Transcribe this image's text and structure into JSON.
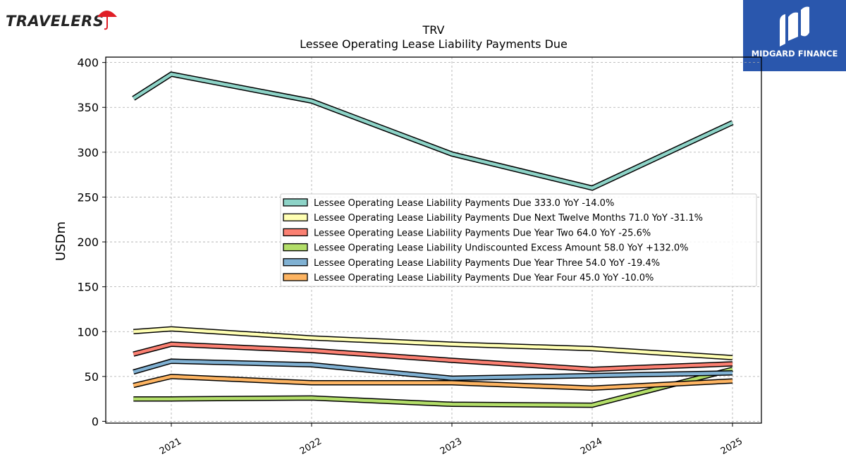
{
  "brand_left": {
    "text": "TRAVELERS",
    "umbrella_color": "#e01e26"
  },
  "brand_right": {
    "text": "MIDGARD FINANCE",
    "bg_color": "#2a57ad"
  },
  "chart_data": {
    "type": "line",
    "title": "TRV",
    "subtitle": "Lessee Operating Lease Liability Payments Due",
    "ylabel": "USDm",
    "xlabel": "",
    "ylim": [
      -2,
      406
    ],
    "yticks": [
      0,
      50,
      100,
      150,
      200,
      250,
      300,
      350,
      400
    ],
    "xticks": [
      "2021",
      "2022",
      "2023",
      "2024",
      "2025"
    ],
    "grid": true,
    "legend_position": "center-right",
    "series": [
      {
        "name": "Lessee Operating Lease Liability Payments Due  333.0 YoY -14.0%",
        "color": "#8dd3c7",
        "x": [
          2020.73,
          2021.0,
          2022.0,
          2023.0,
          2024.0,
          2025.0
        ],
        "y": [
          360,
          387,
          357,
          298,
          260,
          333
        ]
      },
      {
        "name": "Lessee Operating Lease Liability Payments Due Next Twelve Months  71.0 YoY -31.1%",
        "color": "#ffffb3",
        "x": [
          2020.73,
          2021.0,
          2022.0,
          2023.0,
          2024.0,
          2025.0
        ],
        "y": [
          100,
          103,
          93,
          86,
          81,
          71
        ]
      },
      {
        "name": "Lessee Operating Lease Liability Payments Due Year Two  64.0 YoY -25.6%",
        "color": "#fb8072",
        "x": [
          2020.73,
          2021.0,
          2022.0,
          2023.0,
          2024.0,
          2025.0
        ],
        "y": [
          75,
          86,
          79,
          68,
          58,
          64
        ]
      },
      {
        "name": "Lessee Operating Lease Liability Undiscounted Excess Amount  58.0 YoY +132.0%",
        "color": "#b3de69",
        "x": [
          2020.73,
          2021.0,
          2022.0,
          2023.0,
          2024.0,
          2025.0
        ],
        "y": [
          25,
          25,
          26,
          19,
          18,
          58
        ]
      },
      {
        "name": "Lessee Operating Lease Liability Payments Due Year Three  54.0 YoY -19.4%",
        "color": "#80b1d3",
        "x": [
          2020.73,
          2021.0,
          2022.0,
          2023.0,
          2024.0,
          2025.0
        ],
        "y": [
          55,
          67,
          63,
          48,
          51,
          54
        ]
      },
      {
        "name": "Lessee Operating Lease Liability Payments Due Year Four  45.0 YoY -10.0%",
        "color": "#fdb462",
        "x": [
          2020.73,
          2021.0,
          2022.0,
          2023.0,
          2024.0,
          2025.0
        ],
        "y": [
          40,
          50,
          43,
          43,
          37,
          45
        ]
      }
    ]
  }
}
